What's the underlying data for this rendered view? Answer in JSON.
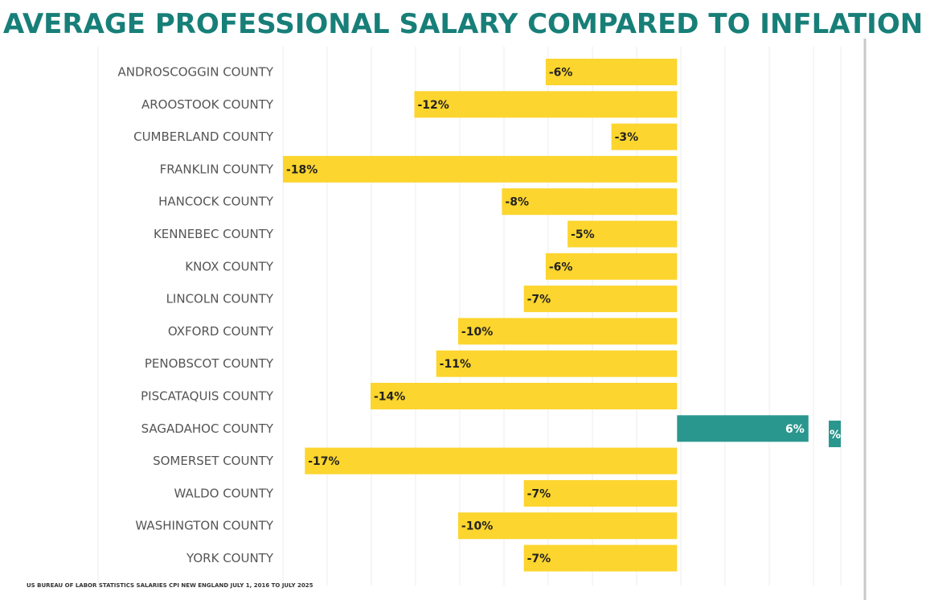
{
  "title": "AVERAGE PROFESSIONAL SALARY COMPARED TO INFLATION",
  "source": "US BUREAU OF LABOR STATISTICS SALARIES CPI NEW ENGLAND JULY 1, 2016 TO JULY 2025",
  "colors": {
    "title": "#177f78",
    "negative": "#fcd52e",
    "positive": "#2a978e",
    "grid": "#ececec"
  },
  "chart_data": {
    "type": "bar",
    "orientation": "horizontal",
    "title": "AVERAGE PROFESSIONAL SALARY COMPARED TO INFLATION",
    "xlabel": "",
    "ylabel": "",
    "xlim": [
      -18,
      7
    ],
    "value_suffix": "%",
    "grid": true,
    "categories": [
      "ANDROSCOGGIN COUNTY",
      "AROOSTOOK COUNTY",
      "CUMBERLAND COUNTY",
      "FRANKLIN COUNTY",
      "HANCOCK COUNTY",
      "KENNEBEC COUNTY",
      "KNOX COUNTY",
      "LINCOLN COUNTY",
      "OXFORD COUNTY",
      "PENOBSCOT COUNTY",
      "PISCATAQUIS COUNTY",
      "SAGADAHOC COUNTY",
      "SOMERSET COUNTY",
      "WALDO COUNTY",
      "WASHINGTON COUNTY",
      "YORK COUNTY"
    ],
    "values": [
      -6,
      -12,
      -3,
      -18,
      -8,
      -5,
      -6,
      -7,
      -10,
      -11,
      -14,
      6,
      -17,
      -7,
      -10,
      -7
    ],
    "annotations": [
      "%"
    ]
  }
}
